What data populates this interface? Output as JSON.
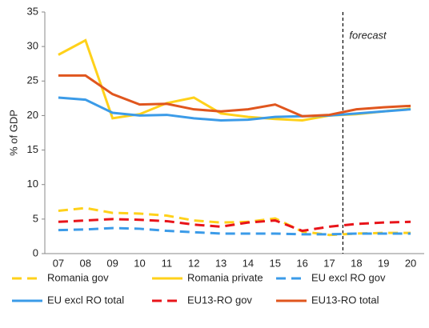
{
  "chart_data": {
    "type": "line",
    "y_label": "% of GDP",
    "categories": [
      "07",
      "08",
      "09",
      "10",
      "11",
      "12",
      "13",
      "14",
      "15",
      "16",
      "17",
      "18",
      "19",
      "20"
    ],
    "ylim": [
      0,
      35
    ],
    "yticks": [
      0,
      5,
      10,
      15,
      20,
      25,
      30,
      35
    ],
    "annotation": {
      "text": "forecast",
      "x_between": [
        "17",
        "18"
      ]
    },
    "series": [
      {
        "name": "Romania gov",
        "color": "#FFD11A",
        "dashed": true,
        "values": [
          6.2,
          6.6,
          5.9,
          5.8,
          5.5,
          4.8,
          4.5,
          4.6,
          5.1,
          3.2,
          2.7,
          2.9,
          3.0,
          3.0
        ]
      },
      {
        "name": "Romania private",
        "color": "#FFD11A",
        "dashed": false,
        "values": [
          28.8,
          30.9,
          19.6,
          20.2,
          21.8,
          22.6,
          20.3,
          19.8,
          19.5,
          19.3,
          20.0,
          20.2,
          20.6,
          21.0
        ]
      },
      {
        "name": "EU excl RO gov",
        "color": "#3B9BE8",
        "dashed": true,
        "values": [
          3.4,
          3.5,
          3.7,
          3.6,
          3.3,
          3.1,
          2.9,
          2.9,
          2.9,
          2.8,
          2.8,
          2.9,
          2.9,
          2.9
        ]
      },
      {
        "name": "EU excl RO total",
        "color": "#3B9BE8",
        "dashed": false,
        "values": [
          22.6,
          22.3,
          20.4,
          20.0,
          20.1,
          19.6,
          19.3,
          19.4,
          19.8,
          19.9,
          20.0,
          20.3,
          20.6,
          20.9
        ]
      },
      {
        "name": "EU13-RO gov",
        "color": "#E8141A",
        "dashed": true,
        "values": [
          4.6,
          4.8,
          5.0,
          4.9,
          4.7,
          4.2,
          3.9,
          4.5,
          4.8,
          3.3,
          3.9,
          4.3,
          4.5,
          4.6
        ]
      },
      {
        "name": "EU13-RO total",
        "color": "#E0561E",
        "dashed": false,
        "values": [
          25.8,
          25.8,
          23.1,
          21.6,
          21.7,
          20.9,
          20.6,
          20.9,
          21.6,
          19.9,
          20.1,
          20.9,
          21.2,
          21.4
        ]
      }
    ]
  }
}
